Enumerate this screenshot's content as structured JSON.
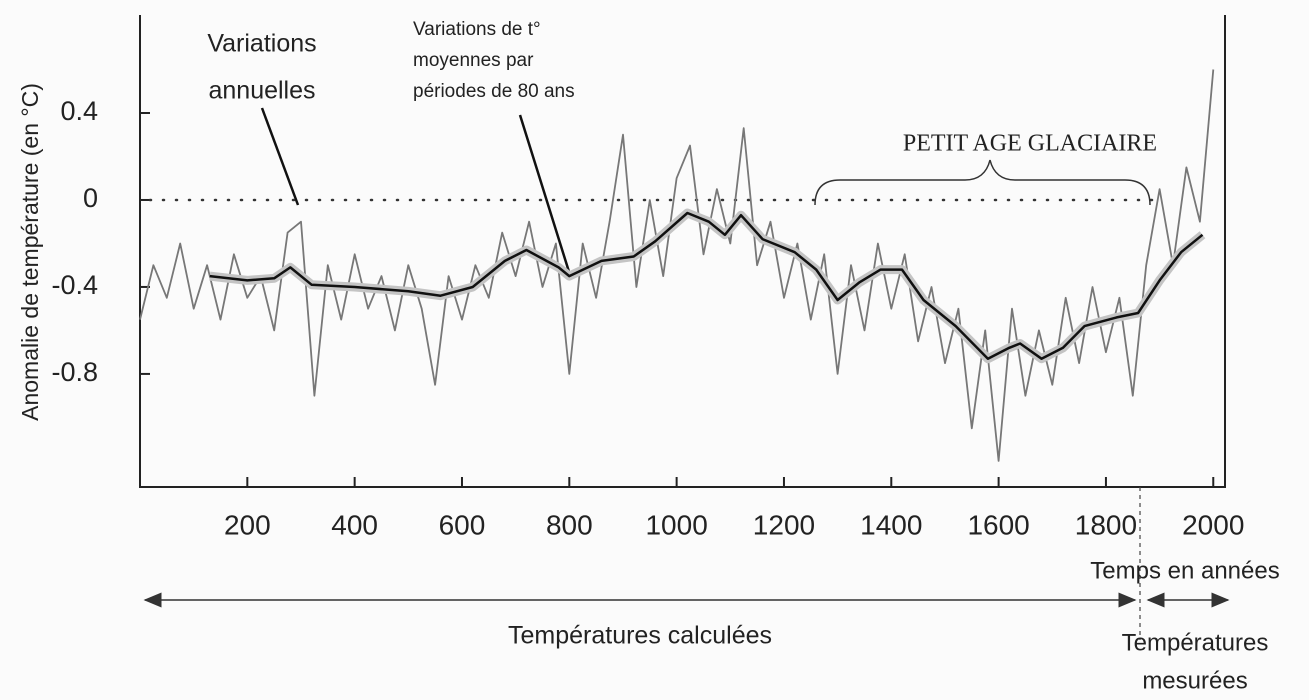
{
  "chart_data": {
    "type": "line",
    "y_label": "Anomalie de température (en °C)",
    "x_label": "Temps en années",
    "xlim": [
      0,
      2020
    ],
    "ylim": [
      -1.32,
      0.83
    ],
    "xticks": [
      200,
      400,
      600,
      800,
      1000,
      1200,
      1400,
      1600,
      1800,
      2000
    ],
    "yticks": [
      0.4,
      0,
      -0.4,
      -0.8
    ],
    "reference_line": 0,
    "series": [
      {
        "label_lines": [
          "Variations",
          "annuelles"
        ],
        "color": "#777777",
        "x": [
          0,
          25,
          50,
          75,
          100,
          125,
          150,
          175,
          200,
          225,
          250,
          275,
          300,
          325,
          350,
          375,
          400,
          425,
          450,
          475,
          500,
          525,
          550,
          575,
          600,
          625,
          650,
          675,
          700,
          725,
          750,
          775,
          800,
          825,
          850,
          875,
          900,
          925,
          950,
          975,
          1000,
          1025,
          1050,
          1075,
          1100,
          1125,
          1150,
          1175,
          1200,
          1225,
          1250,
          1275,
          1300,
          1325,
          1350,
          1375,
          1400,
          1425,
          1450,
          1475,
          1500,
          1525,
          1550,
          1575,
          1600,
          1625,
          1650,
          1675,
          1700,
          1725,
          1750,
          1775,
          1800,
          1825,
          1850,
          1875,
          1900,
          1925,
          1950,
          1975,
          2000
        ],
        "values": [
          -0.55,
          -0.3,
          -0.45,
          -0.2,
          -0.5,
          -0.3,
          -0.55,
          -0.25,
          -0.45,
          -0.35,
          -0.6,
          -0.15,
          -0.1,
          -0.9,
          -0.3,
          -0.55,
          -0.25,
          -0.5,
          -0.35,
          -0.6,
          -0.3,
          -0.5,
          -0.85,
          -0.35,
          -0.55,
          -0.3,
          -0.45,
          -0.15,
          -0.35,
          -0.1,
          -0.4,
          -0.2,
          -0.8,
          -0.2,
          -0.45,
          -0.1,
          0.3,
          -0.4,
          0.0,
          -0.35,
          0.1,
          0.25,
          -0.25,
          0.05,
          -0.2,
          0.33,
          -0.3,
          -0.1,
          -0.45,
          -0.2,
          -0.55,
          -0.25,
          -0.8,
          -0.3,
          -0.6,
          -0.2,
          -0.5,
          -0.25,
          -0.65,
          -0.4,
          -0.75,
          -0.5,
          -1.05,
          -0.6,
          -1.2,
          -0.5,
          -0.9,
          -0.6,
          -0.85,
          -0.45,
          -0.75,
          -0.4,
          -0.7,
          -0.45,
          -0.9,
          -0.3,
          0.05,
          -0.3,
          0.15,
          -0.1,
          0.6
        ]
      },
      {
        "label_lines": [
          "Variations de t°",
          "moyennes par",
          "périodes de 80 ans"
        ],
        "color": "#111111",
        "x": [
          130,
          200,
          250,
          280,
          320,
          400,
          500,
          560,
          620,
          680,
          720,
          780,
          800,
          860,
          920,
          960,
          1020,
          1060,
          1090,
          1120,
          1160,
          1220,
          1260,
          1300,
          1340,
          1380,
          1420,
          1460,
          1520,
          1580,
          1620,
          1640,
          1680,
          1720,
          1760,
          1820,
          1860,
          1900,
          1940,
          1980
        ],
        "values": [
          -0.35,
          -0.37,
          -0.36,
          -0.31,
          -0.39,
          -0.4,
          -0.42,
          -0.44,
          -0.4,
          -0.28,
          -0.23,
          -0.31,
          -0.35,
          -0.28,
          -0.26,
          -0.19,
          -0.06,
          -0.1,
          -0.16,
          -0.07,
          -0.18,
          -0.24,
          -0.32,
          -0.46,
          -0.38,
          -0.32,
          -0.32,
          -0.46,
          -0.58,
          -0.73,
          -0.68,
          -0.66,
          -0.73,
          -0.68,
          -0.58,
          -0.54,
          -0.52,
          -0.37,
          -0.24,
          -0.16
        ]
      }
    ],
    "annotations": {
      "period": "PETIT AGE GLACIAIRE",
      "computed": "Températures calculées",
      "measured_lines": [
        "Températures",
        "mesurées"
      ]
    }
  }
}
